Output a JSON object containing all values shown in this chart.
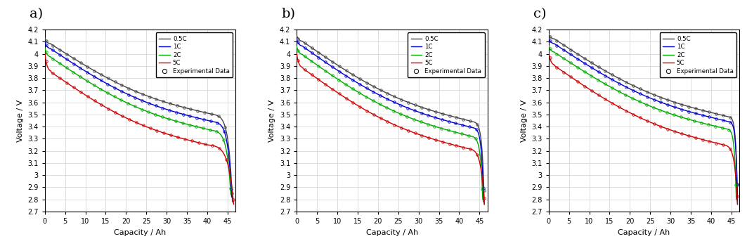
{
  "panels": [
    "a)",
    "b)",
    "c)"
  ],
  "xlabel": "Capacity / Ah",
  "ylabel": "Voltage / V",
  "xlim": [
    0,
    47
  ],
  "ylim": [
    2.7,
    4.2
  ],
  "yticks": [
    2.7,
    2.8,
    2.9,
    3.0,
    3.1,
    3.2,
    3.3,
    3.4,
    3.5,
    3.6,
    3.7,
    3.8,
    3.9,
    4.0,
    4.1,
    4.2
  ],
  "xticks": [
    0,
    5,
    10,
    15,
    20,
    25,
    30,
    35,
    40,
    45
  ],
  "line_colors": [
    "#444444",
    "#0000cc",
    "#00aa00",
    "#cc0000"
  ],
  "line_labels": [
    "0.5C",
    "1C",
    "2C",
    "5C"
  ],
  "legend_exp": "Experimental Data",
  "panels_data": {
    "a": {
      "curves": [
        {
          "v0": 4.13,
          "v_high": 4.08,
          "v_mid": 3.72,
          "v_knee": 3.5,
          "knee_x": 41.5,
          "v_end": 2.78,
          "x_end": 46.2
        },
        {
          "v0": 4.1,
          "v_high": 4.04,
          "v_mid": 3.62,
          "v_knee": 3.44,
          "knee_x": 41.5,
          "v_end": 2.82,
          "x_end": 46.0
        },
        {
          "v0": 4.05,
          "v_high": 3.97,
          "v_mid": 3.52,
          "v_knee": 3.37,
          "knee_x": 41.0,
          "v_end": 2.84,
          "x_end": 45.8
        },
        {
          "v0": 4.01,
          "v_high": 3.85,
          "v_mid": 3.42,
          "v_knee": 3.25,
          "knee_x": 40.0,
          "v_end": 2.76,
          "x_end": 46.5
        }
      ]
    },
    "b": {
      "curves": [
        {
          "v0": 4.15,
          "v_high": 4.1,
          "v_mid": 3.76,
          "v_knee": 3.44,
          "knee_x": 43.5,
          "v_end": 2.76,
          "x_end": 46.2
        },
        {
          "v0": 4.12,
          "v_high": 4.06,
          "v_mid": 3.67,
          "v_knee": 3.39,
          "knee_x": 43.5,
          "v_end": 2.78,
          "x_end": 46.0
        },
        {
          "v0": 4.06,
          "v_high": 3.99,
          "v_mid": 3.57,
          "v_knee": 3.32,
          "knee_x": 43.0,
          "v_end": 2.8,
          "x_end": 45.8
        },
        {
          "v0": 4.0,
          "v_high": 3.88,
          "v_mid": 3.44,
          "v_knee": 3.22,
          "knee_x": 42.0,
          "v_end": 2.76,
          "x_end": 46.2
        }
      ]
    },
    "c": {
      "curves": [
        {
          "v0": 4.16,
          "v_high": 4.12,
          "v_mid": 3.78,
          "v_knee": 3.48,
          "knee_x": 44.5,
          "v_end": 2.76,
          "x_end": 46.5
        },
        {
          "v0": 4.13,
          "v_high": 4.08,
          "v_mid": 3.7,
          "v_knee": 3.44,
          "knee_x": 44.5,
          "v_end": 2.78,
          "x_end": 46.5
        },
        {
          "v0": 4.07,
          "v_high": 4.01,
          "v_mid": 3.6,
          "v_knee": 3.38,
          "knee_x": 44.0,
          "v_end": 2.8,
          "x_end": 46.2
        },
        {
          "v0": 4.02,
          "v_high": 3.9,
          "v_mid": 3.48,
          "v_knee": 3.25,
          "knee_x": 43.0,
          "v_end": 2.76,
          "x_end": 46.5
        }
      ]
    }
  }
}
